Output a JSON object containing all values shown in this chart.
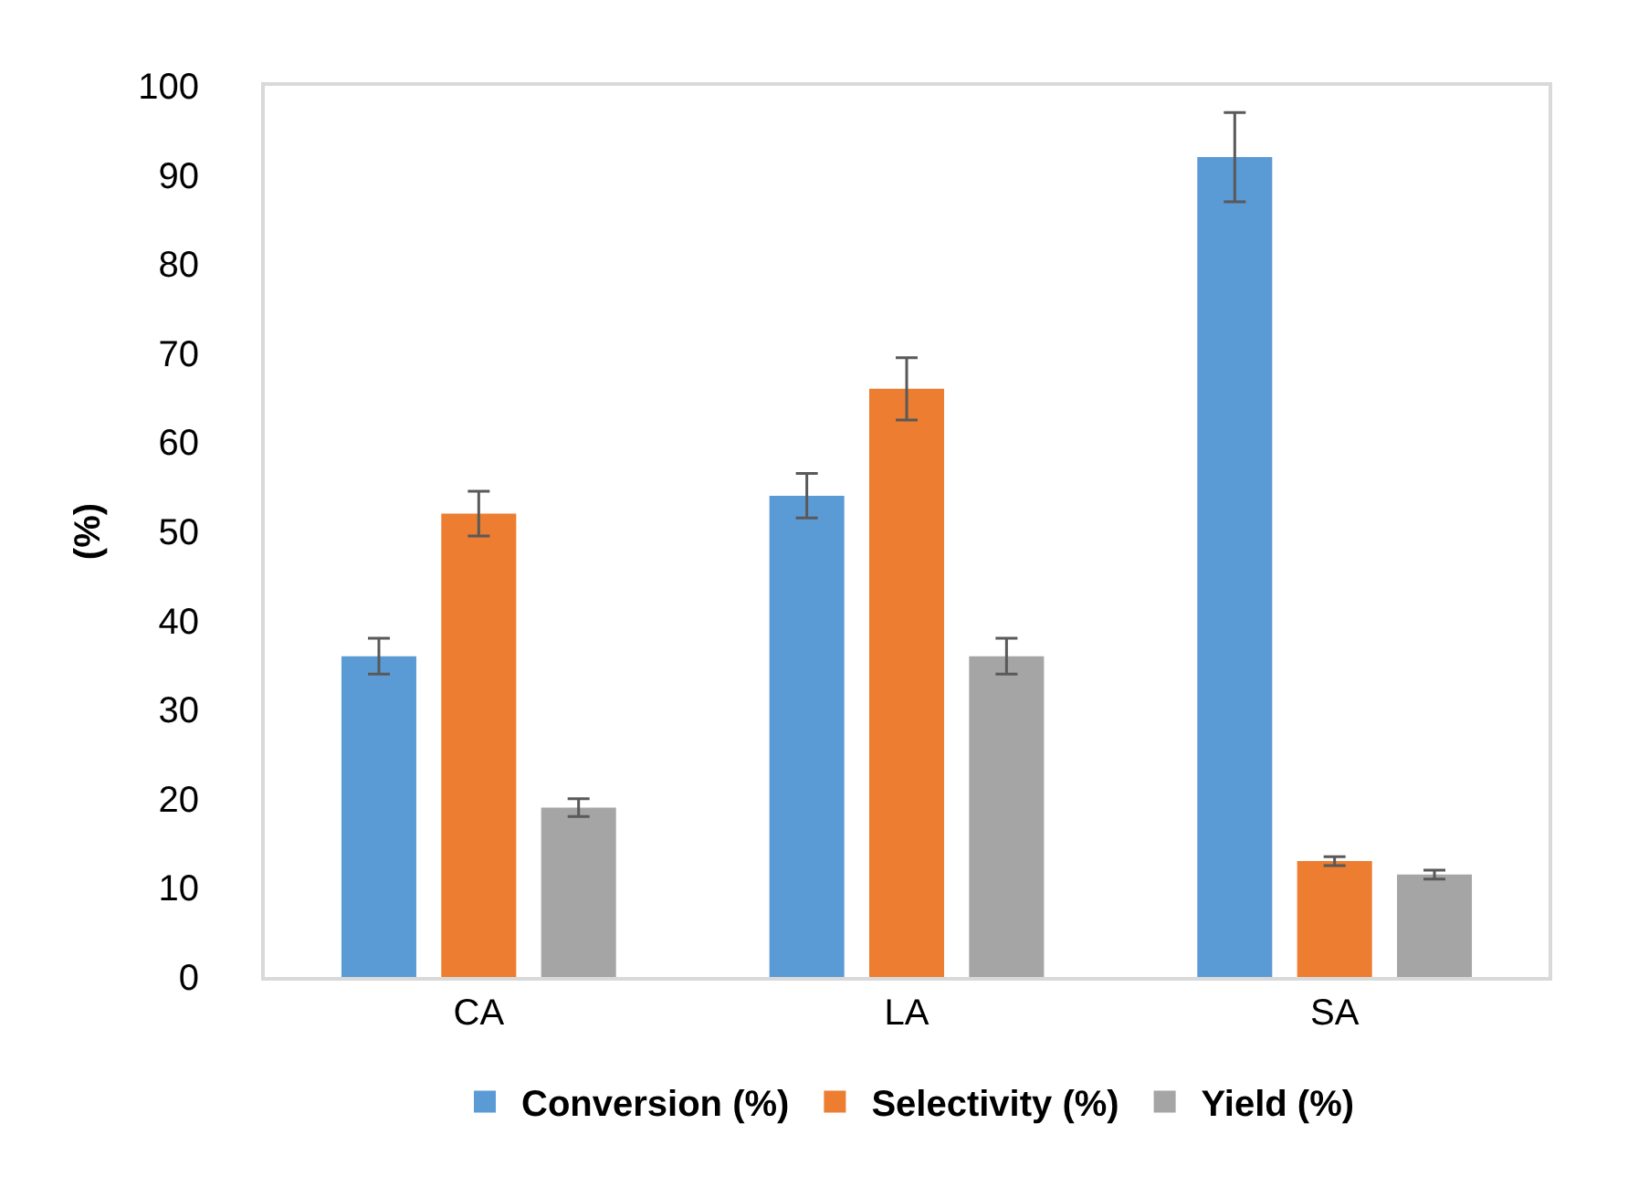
{
  "chart_data": {
    "type": "bar",
    "ylabel": "(%)",
    "categories": [
      "CA",
      "LA",
      "SA"
    ],
    "series": [
      {
        "name": "Conversion (%)",
        "color": "#5b9bd5",
        "values": [
          36,
          54,
          92
        ],
        "errors": [
          2,
          2.5,
          5
        ]
      },
      {
        "name": "Selectivity (%)",
        "color": "#ed7d31",
        "values": [
          52,
          66,
          13
        ],
        "errors": [
          2.5,
          3.5,
          0.5
        ]
      },
      {
        "name": "Yield (%)",
        "color": "#a5a5a5",
        "values": [
          19,
          36,
          11.5
        ],
        "errors": [
          1,
          2,
          0.5
        ]
      }
    ],
    "ylim": [
      0,
      100
    ],
    "yticks": [
      0,
      10,
      20,
      30,
      40,
      50,
      60,
      70,
      80,
      90,
      100
    ],
    "grid": false,
    "legend": "bottom"
  }
}
